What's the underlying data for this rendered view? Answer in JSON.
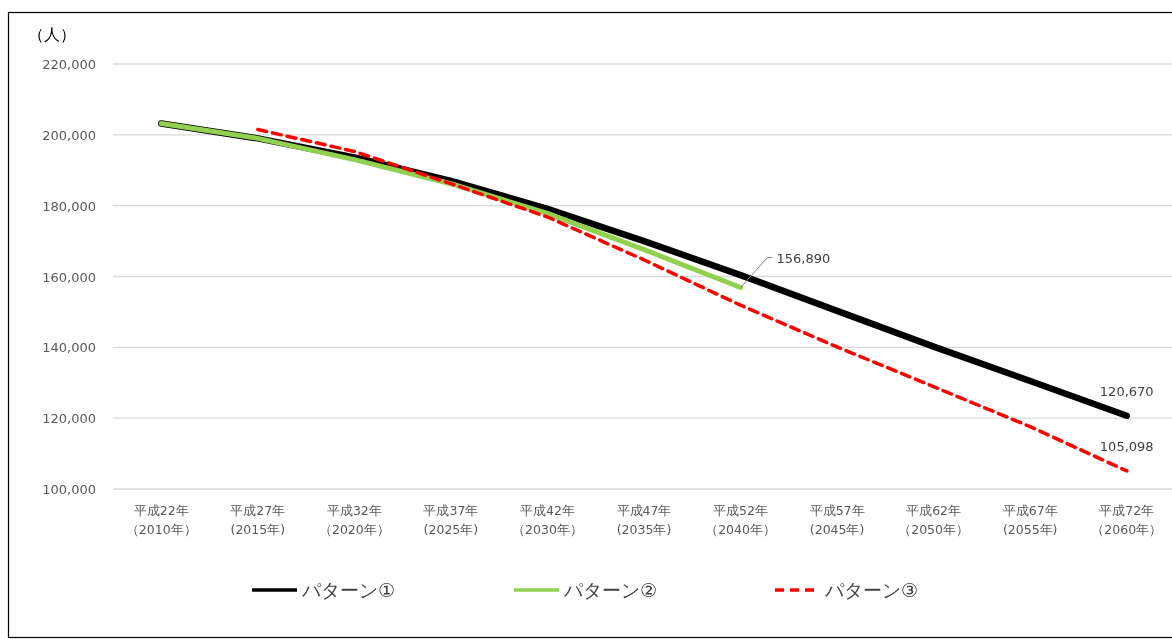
{
  "chart_data": {
    "type": "line",
    "ylabel": "（人）",
    "categories": [
      "平成22年（2010年）",
      "平成27年(2015年)",
      "平成32年（2020年）",
      "平成37年(2025年)",
      "平成42年（2030年）",
      "平成47年(2035年)",
      "平成52年（2040年）",
      "平成57年(2045年)",
      "平成62年（2050年）",
      "平成67年(2055年)",
      "平成72年（2060年）"
    ],
    "series": [
      {
        "name": "パターン①",
        "color": "#000000",
        "line_style": "solid",
        "values": [
          203200,
          199000,
          193600,
          187000,
          179100,
          170000,
          160400,
          150300,
          140200,
          130500,
          120670
        ],
        "value_labels": [
          null,
          null,
          null,
          null,
          null,
          null,
          null,
          null,
          null,
          null,
          "120,670"
        ]
      },
      {
        "name": "パターン②",
        "color": "#92d050",
        "line_style": "solid",
        "values": [
          203200,
          199000,
          193000,
          186200,
          177800,
          167600,
          156890,
          null,
          null,
          null,
          null
        ],
        "value_labels": [
          null,
          null,
          null,
          null,
          null,
          null,
          "156,890",
          null,
          null,
          null,
          null
        ]
      },
      {
        "name": "パターン③",
        "color": "#ff0000",
        "line_style": "dashed",
        "values": [
          null,
          201500,
          195300,
          186200,
          176800,
          164700,
          151900,
          140100,
          128900,
          117600,
          105098
        ],
        "value_labels": [
          null,
          null,
          null,
          null,
          null,
          null,
          null,
          null,
          null,
          null,
          "105,098"
        ]
      }
    ],
    "ylim": [
      100000,
      220000
    ],
    "yticks": [
      {
        "value": 100000,
        "label": "100,000"
      },
      {
        "value": 120000,
        "label": "120,000"
      },
      {
        "value": 140000,
        "label": "140,000"
      },
      {
        "value": 160000,
        "label": "160,000"
      },
      {
        "value": 180000,
        "label": "180,000"
      },
      {
        "value": 200000,
        "label": "200,000"
      },
      {
        "value": 220000,
        "label": "220,000"
      }
    ],
    "grid": "y",
    "legend": "bottom"
  }
}
